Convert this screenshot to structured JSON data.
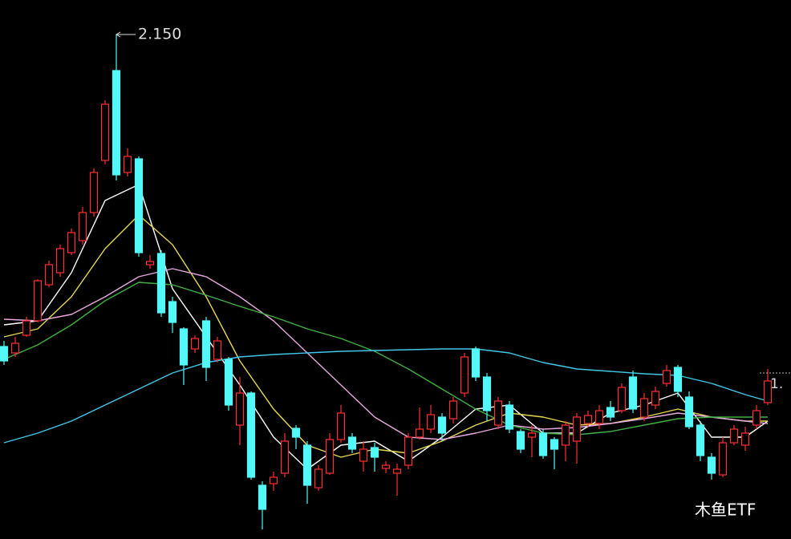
{
  "chart_data": {
    "type": "candlestick",
    "annotation": "2.150",
    "last_price_label": "1.",
    "watermark": "木鱼ETF",
    "ylim": [
      0.892,
      2.236
    ],
    "up_color": "#ff3030",
    "down_color": "#54f8f8",
    "candles": {
      "open": [
        1.372,
        1.356,
        1.4,
        1.436,
        1.526,
        1.556,
        1.606,
        1.636,
        1.706,
        1.836,
        2.06,
        1.806,
        1.84,
        1.576,
        1.604,
        1.484,
        1.416,
        1.366,
        1.436,
        1.34,
        1.34,
        1.176,
        1.256,
        1.026,
        1.03,
        1.056,
        1.168,
        1.126,
        1.02,
        1.056,
        1.14,
        1.146,
        1.086,
        1.12,
        1.068,
        1.056,
        1.076,
        1.146,
        1.166,
        1.196,
        1.192,
        1.256,
        1.366,
        1.296,
        1.176,
        1.226,
        1.16,
        1.146,
        1.156,
        1.14,
        1.126,
        1.136,
        1.18,
        1.18,
        1.22,
        1.212,
        1.296,
        1.196,
        1.226,
        1.28,
        1.32,
        1.246,
        1.176,
        1.096,
        1.052,
        1.132,
        1.126,
        1.176,
        1.232
      ],
      "high": [
        1.386,
        1.396,
        1.446,
        1.54,
        1.586,
        1.626,
        1.666,
        1.72,
        1.816,
        1.986,
        2.15,
        1.866,
        1.846,
        1.6,
        1.612,
        1.496,
        1.42,
        1.4,
        1.446,
        1.396,
        1.346,
        1.296,
        1.26,
        1.036,
        1.06,
        1.156,
        1.176,
        1.136,
        1.076,
        1.156,
        1.226,
        1.156,
        1.136,
        1.132,
        1.086,
        1.08,
        1.156,
        1.22,
        1.226,
        1.206,
        1.246,
        1.356,
        1.372,
        1.306,
        1.246,
        1.236,
        1.166,
        1.176,
        1.166,
        1.146,
        1.186,
        1.206,
        1.212,
        1.226,
        1.236,
        1.28,
        1.312,
        1.256,
        1.272,
        1.326,
        1.326,
        1.26,
        1.186,
        1.106,
        1.146,
        1.176,
        1.172,
        1.226,
        1.316
      ],
      "low": [
        1.326,
        1.346,
        1.396,
        1.432,
        1.52,
        1.546,
        1.6,
        1.626,
        1.696,
        1.826,
        1.786,
        1.796,
        1.596,
        1.566,
        1.446,
        1.406,
        1.276,
        1.356,
        1.286,
        1.332,
        1.212,
        1.126,
        1.04,
        0.916,
        1.012,
        1.046,
        1.116,
        0.98,
        1.012,
        1.052,
        1.132,
        1.106,
        1.06,
        1.06,
        1.056,
        1.0,
        1.066,
        1.14,
        1.156,
        1.136,
        1.18,
        1.246,
        1.286,
        1.186,
        1.166,
        1.156,
        1.106,
        1.096,
        1.092,
        1.066,
        1.086,
        1.08,
        1.172,
        1.166,
        1.186,
        1.206,
        1.206,
        1.186,
        1.216,
        1.272,
        1.246,
        1.166,
        1.086,
        1.04,
        1.046,
        1.126,
        1.112,
        1.166,
        1.226
      ],
      "close": [
        1.336,
        1.38,
        1.436,
        1.536,
        1.576,
        1.616,
        1.656,
        1.706,
        1.806,
        1.976,
        1.8,
        1.846,
        1.606,
        1.584,
        1.456,
        1.432,
        1.326,
        1.392,
        1.32,
        1.386,
        1.226,
        1.256,
        1.046,
        0.966,
        1.046,
        1.136,
        1.146,
        1.026,
        1.066,
        1.14,
        1.206,
        1.116,
        1.116,
        1.096,
        1.076,
        1.066,
        1.146,
        1.166,
        1.202,
        1.156,
        1.236,
        1.346,
        1.296,
        1.212,
        1.236,
        1.166,
        1.116,
        1.156,
        1.1,
        1.116,
        1.176,
        1.196,
        1.2,
        1.212,
        1.196,
        1.27,
        1.216,
        1.242,
        1.26,
        1.312,
        1.26,
        1.172,
        1.1,
        1.056,
        1.132,
        1.166,
        1.156,
        1.212,
        1.286
      ]
    },
    "lines": [
      {
        "color": "#ffffff",
        "x": [
          0,
          3,
          6,
          9,
          12,
          15,
          18,
          21,
          24,
          27,
          30,
          33,
          36,
          39,
          42,
          45,
          48,
          51,
          54,
          57,
          60,
          63,
          66,
          68
        ],
        "values": [
          1.426,
          1.436,
          1.556,
          1.736,
          1.776,
          1.516,
          1.396,
          1.276,
          1.146,
          1.066,
          1.126,
          1.136,
          1.086,
          1.146,
          1.216,
          1.226,
          1.156,
          1.156,
          1.206,
          1.226,
          1.256,
          1.146,
          1.146,
          1.186
        ]
      },
      {
        "color": "#e8d850",
        "x": [
          0,
          3,
          6,
          9,
          12,
          15,
          18,
          21,
          24,
          27,
          30,
          33,
          36,
          39,
          42,
          45,
          48,
          51,
          54,
          57,
          60,
          63,
          66,
          68
        ],
        "values": [
          1.396,
          1.416,
          1.496,
          1.616,
          1.7,
          1.626,
          1.496,
          1.336,
          1.216,
          1.126,
          1.096,
          1.116,
          1.106,
          1.136,
          1.176,
          1.206,
          1.196,
          1.176,
          1.18,
          1.196,
          1.216,
          1.196,
          1.186,
          1.186
        ]
      },
      {
        "color": "#e8a8e0",
        "x": [
          0,
          3,
          6,
          9,
          12,
          15,
          18,
          21,
          24,
          27,
          30,
          33,
          36,
          39,
          42,
          45,
          48,
          51,
          54,
          57,
          60,
          63,
          66,
          68
        ],
        "values": [
          1.44,
          1.436,
          1.452,
          1.496,
          1.546,
          1.566,
          1.546,
          1.496,
          1.436,
          1.356,
          1.276,
          1.196,
          1.146,
          1.14,
          1.156,
          1.176,
          1.166,
          1.17,
          1.18,
          1.192,
          1.206,
          1.196,
          1.186,
          1.18
        ]
      },
      {
        "color": "#40b040",
        "x": [
          0,
          3,
          6,
          9,
          12,
          15,
          18,
          21,
          24,
          27,
          30,
          33,
          36,
          39,
          42,
          45,
          48,
          51,
          54,
          57,
          60,
          63,
          66,
          68
        ],
        "values": [
          1.34,
          1.376,
          1.426,
          1.486,
          1.532,
          1.526,
          1.5,
          1.472,
          1.446,
          1.416,
          1.392,
          1.36,
          1.316,
          1.266,
          1.216,
          1.176,
          1.156,
          1.152,
          1.16,
          1.176,
          1.192,
          1.196,
          1.196,
          1.196
        ]
      },
      {
        "color": "#40c8e8",
        "x": [
          0,
          3,
          6,
          9,
          12,
          15,
          18,
          21,
          24,
          27,
          30,
          33,
          36,
          39,
          42,
          45,
          48,
          51,
          54,
          57,
          60,
          63,
          66,
          68
        ],
        "values": [
          1.132,
          1.156,
          1.186,
          1.226,
          1.266,
          1.306,
          1.332,
          1.346,
          1.352,
          1.356,
          1.36,
          1.362,
          1.364,
          1.366,
          1.366,
          1.356,
          1.332,
          1.316,
          1.31,
          1.304,
          1.3,
          1.28,
          1.252,
          1.236
        ]
      }
    ]
  }
}
